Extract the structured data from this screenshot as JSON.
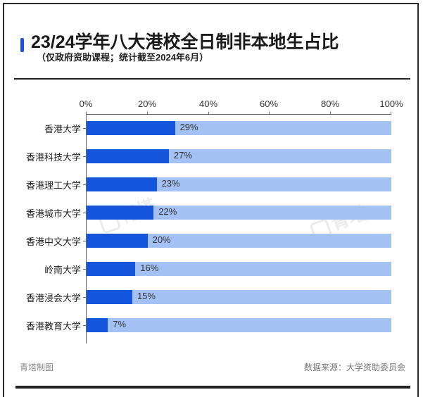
{
  "header": {
    "title": "23/24学年八大港校全日制非本地生占比",
    "subtitle": "（仅政府资助课程；统计截至2024年6月）",
    "accent_color": "#1f4fe0"
  },
  "axis": {
    "ticks": [
      "0%",
      "20%",
      "40%",
      "60%",
      "80%",
      "100%"
    ]
  },
  "footer": {
    "credit": "青塔制图",
    "source": "数据来源：大学资助委员会"
  },
  "watermark": {
    "text": "青塔"
  },
  "colors": {
    "bar_value": "#1455dc",
    "bar_background": "#a3c2f3"
  },
  "chart_data": {
    "type": "bar",
    "orientation": "horizontal",
    "title": "23/24学年八大港校全日制非本地生占比",
    "subtitle": "（仅政府资助课程；统计截至2024年6月）",
    "categories": [
      "香港大学",
      "香港科技大学",
      "香港理工大学",
      "香港城市大学",
      "香港中文大学",
      "岭南大学",
      "香港浸会大学",
      "香港教育大学"
    ],
    "values": [
      29,
      27,
      23,
      22,
      20,
      16,
      15,
      7
    ],
    "value_labels": [
      "29%",
      "27%",
      "23%",
      "22%",
      "20%",
      "16%",
      "15%",
      "7%"
    ],
    "xlabel": "",
    "ylabel": "",
    "xlim": [
      0,
      100
    ],
    "x_ticks": [
      "0%",
      "20%",
      "40%",
      "60%",
      "80%",
      "100%"
    ],
    "x_axis_position": "top",
    "background_bar": 100,
    "grid": false,
    "legend": null,
    "source": "数据来源：大学资助委员会"
  }
}
